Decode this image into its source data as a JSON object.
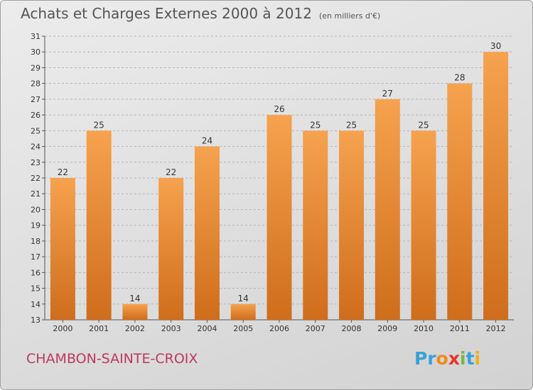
{
  "title": "Achats et Charges Externes 2000 à 2012",
  "unit": "(en milliers d'€)",
  "commune": "CHAMBON-SAINTE-CROIX",
  "logo": {
    "letters": [
      "P",
      "r",
      "o",
      "x",
      "i",
      "t",
      "i"
    ],
    "colors": [
      "#3aa0d8",
      "#3aa0d8",
      "#f08a1c",
      "#e8342c",
      "#7ab648",
      "#3aa0d8",
      "#f0b01c"
    ]
  },
  "colors": {
    "bar_top": "#f6a24e",
    "bar_bottom": "#cf6d1c",
    "grid": "#b4b4b4",
    "axis": "#555555",
    "text": "#333333",
    "commune": "#c0375f"
  },
  "chart_data": {
    "type": "bar",
    "title": "Achats et Charges Externes 2000 à 2012",
    "subtitle": "(en milliers d'€)",
    "categories": [
      "2000",
      "2001",
      "2002",
      "2003",
      "2004",
      "2005",
      "2006",
      "2007",
      "2008",
      "2009",
      "2010",
      "2011",
      "2012"
    ],
    "values": [
      22,
      25,
      14,
      22,
      24,
      14,
      26,
      25,
      25,
      27,
      25,
      28,
      30
    ],
    "ylim": [
      13,
      31
    ],
    "yticks": [
      13,
      14,
      15,
      16,
      17,
      18,
      19,
      20,
      21,
      22,
      23,
      24,
      25,
      26,
      27,
      28,
      29,
      30,
      31
    ],
    "grid": true,
    "data_labels": true
  }
}
